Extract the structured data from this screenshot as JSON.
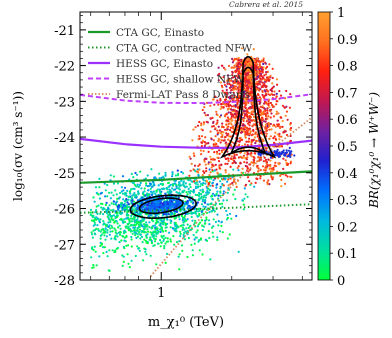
{
  "credit": "Cabrera et al. 2015",
  "colors": {
    "cta_einasto": "#1a9a2a",
    "cta_nfw": "#1a9a2a",
    "hess_einasto": "#9b30ff",
    "hess_nfw": "#c040ff",
    "fermi": "#d2865a",
    "contour": "#000000"
  },
  "chart_data": {
    "type": "scatter",
    "title": "",
    "xlabel": "m_χ₁⁰ (TeV)",
    "ylabel": "log₁₀(σv (cm³ s⁻¹))",
    "colorbar_label": "BR(χ₁⁰χ₁⁰ → W⁺W⁻)",
    "xscale": "log",
    "xlim": [
      0.45,
      4.4
    ],
    "ylim": [
      -28,
      -20.5
    ],
    "x_ticks": [
      {
        "value": 1,
        "label": "1"
      }
    ],
    "y_ticks": [
      {
        "value": -28,
        "label": "-28"
      },
      {
        "value": -27,
        "label": "-27"
      },
      {
        "value": -26,
        "label": "-26"
      },
      {
        "value": -25,
        "label": "-25"
      },
      {
        "value": -24,
        "label": "-24"
      },
      {
        "value": -23,
        "label": "-23"
      },
      {
        "value": -22,
        "label": "-22"
      },
      {
        "value": -21,
        "label": "-21"
      }
    ],
    "colorbar": {
      "range": [
        0,
        1
      ],
      "ticks": [
        {
          "value": 0,
          "label": "0"
        },
        {
          "value": 0.1,
          "label": "0.1"
        },
        {
          "value": 0.2,
          "label": "0.2"
        },
        {
          "value": 0.3,
          "label": "0.3"
        },
        {
          "value": 0.4,
          "label": "0.4"
        },
        {
          "value": 0.5,
          "label": "0.5"
        },
        {
          "value": 0.6,
          "label": "0.6"
        },
        {
          "value": 0.7,
          "label": "0.7"
        },
        {
          "value": 0.8,
          "label": "0.8"
        },
        {
          "value": 0.9,
          "label": "0.9"
        },
        {
          "value": 1,
          "label": "1"
        }
      ],
      "stops": [
        "#00ff3a",
        "#00e0a0",
        "#00b8e0",
        "#0070ff",
        "#2020d0",
        "#7020a0",
        "#c01850",
        "#ff2010",
        "#ff7020",
        "#ffa030"
      ]
    },
    "legend_position": "top-left",
    "series": [
      {
        "name": "CTA GC, Einasto",
        "style": "solid",
        "points": [
          [
            0.45,
            -25.28
          ],
          [
            1,
            -25.2
          ],
          [
            2,
            -25.08
          ],
          [
            4.4,
            -24.96
          ]
        ]
      },
      {
        "name": "CTA GC, contracted NFW",
        "style": "dotted",
        "points": [
          [
            0.45,
            -26.12
          ],
          [
            1,
            -26.05
          ],
          [
            2,
            -25.98
          ],
          [
            4.4,
            -25.88
          ]
        ]
      },
      {
        "name": "HESS GC, Einasto",
        "style": "solid",
        "points": [
          [
            0.45,
            -24.05
          ],
          [
            0.7,
            -24.2
          ],
          [
            1,
            -24.27
          ],
          [
            1.5,
            -24.3
          ],
          [
            2,
            -24.3
          ],
          [
            3,
            -24.22
          ],
          [
            4.4,
            -24.1
          ]
        ]
      },
      {
        "name": "HESS GC, shallow NFW",
        "style": "dashed",
        "points": [
          [
            0.45,
            -22.82
          ],
          [
            0.7,
            -22.98
          ],
          [
            1,
            -23.04
          ],
          [
            1.5,
            -23.05
          ],
          [
            2,
            -23.02
          ],
          [
            3,
            -22.94
          ],
          [
            4.4,
            -22.8
          ]
        ]
      },
      {
        "name": "Fermi-LAT Pass 8 Dwarfs",
        "style": "dotted",
        "points": [
          [
            0.9,
            -27.9
          ],
          [
            1.5,
            -26.2
          ],
          [
            2.2,
            -25.1
          ],
          [
            3,
            -24.3
          ],
          [
            4.4,
            -23.45
          ]
        ]
      }
    ],
    "scatter_regions": [
      {
        "description": "low-mass cluster",
        "x_center": 0.95,
        "y_center": -26.0,
        "br_range": [
          0.0,
          0.45
        ],
        "x_range": [
          0.5,
          2.6
        ],
        "y_range": [
          -28,
          -25.0
        ]
      },
      {
        "description": "coannihilation peak",
        "x_center": 2.3,
        "y_center": -23.2,
        "br_range": [
          0.55,
          1.0
        ],
        "x_range": [
          1.4,
          3.5
        ],
        "y_range": [
          -25.5,
          -21.7
        ]
      }
    ]
  }
}
